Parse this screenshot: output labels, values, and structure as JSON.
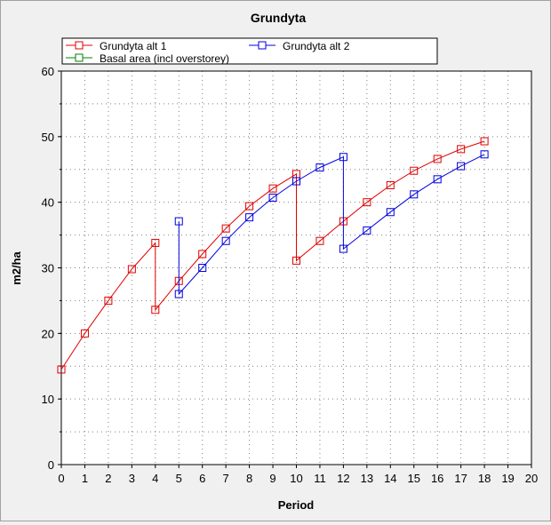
{
  "chart_data": {
    "type": "line",
    "title": "Grundyta",
    "xlabel": "Period",
    "ylabel": "m2/ha",
    "xlim": [
      0,
      20
    ],
    "ylim": [
      0,
      60
    ],
    "x_ticks": [
      "0",
      "1",
      "2",
      "3",
      "4",
      "5",
      "6",
      "7",
      "8",
      "9",
      "10",
      "11",
      "12",
      "13",
      "14",
      "15",
      "16",
      "17",
      "18",
      "19",
      "20"
    ],
    "y_ticks": [
      "0",
      "10",
      "20",
      "30",
      "40",
      "50",
      "60"
    ],
    "grid": true,
    "legend_position": "top",
    "series": [
      {
        "name": "Grundyta alt 1",
        "color": "#e00000",
        "points": [
          [
            0,
            14.5
          ],
          [
            1,
            20.0
          ],
          [
            2,
            25.0
          ],
          [
            3,
            29.8
          ],
          [
            4,
            33.8
          ],
          [
            4,
            23.6
          ],
          [
            5,
            28.0
          ],
          [
            6,
            32.1
          ],
          [
            7,
            36.0
          ],
          [
            8,
            39.4
          ],
          [
            9,
            42.1
          ],
          [
            10,
            44.3
          ],
          [
            10,
            31.1
          ],
          [
            11,
            34.1
          ],
          [
            12,
            37.1
          ],
          [
            13,
            40.0
          ],
          [
            14,
            42.6
          ],
          [
            15,
            44.8
          ],
          [
            16,
            46.6
          ],
          [
            17,
            48.1
          ],
          [
            18,
            49.3
          ]
        ]
      },
      {
        "name": "Grundyta alt 2",
        "color": "#0000e0",
        "points": [
          [
            5,
            37.1
          ],
          [
            5,
            26.0
          ],
          [
            6,
            30.0
          ],
          [
            7,
            34.1
          ],
          [
            8,
            37.7
          ],
          [
            9,
            40.7
          ],
          [
            10,
            43.2
          ],
          [
            11,
            45.3
          ],
          [
            12,
            46.9
          ],
          [
            12,
            32.9
          ],
          [
            13,
            35.7
          ],
          [
            14,
            38.5
          ],
          [
            15,
            41.2
          ],
          [
            16,
            43.5
          ],
          [
            17,
            45.5
          ],
          [
            18,
            47.3
          ]
        ]
      },
      {
        "name": "Basal area (incl overstorey)",
        "color": "#008000",
        "points": []
      }
    ]
  }
}
